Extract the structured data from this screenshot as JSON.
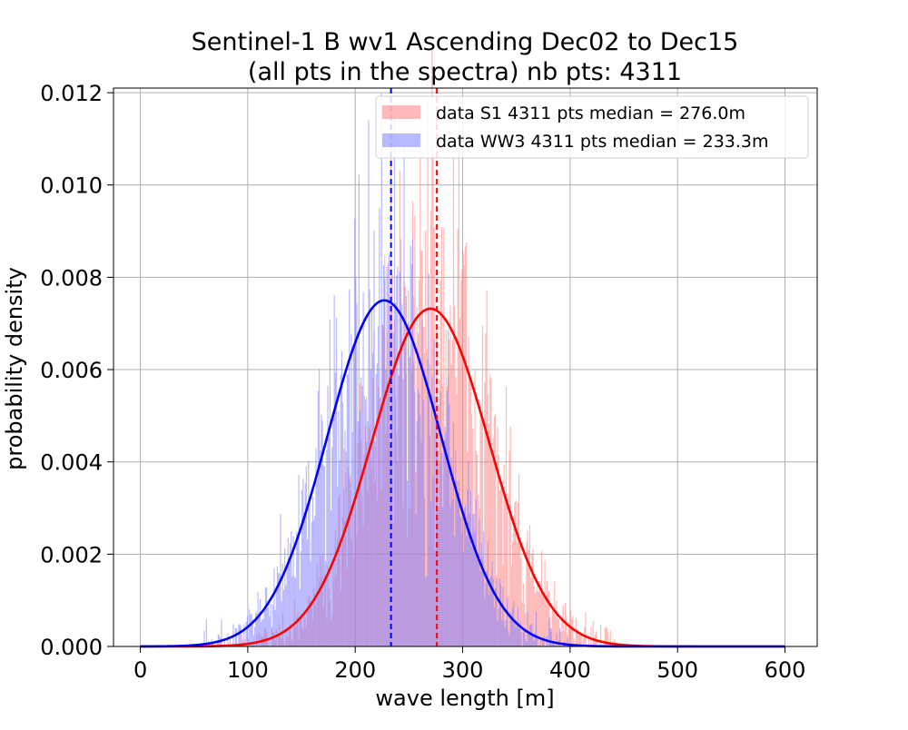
{
  "chart_data": {
    "type": "bar",
    "title": "Sentinel-1 B wv1 Ascending Dec02 to Dec15",
    "subtitle": "(all pts in the spectra) nb pts: 4311",
    "xlabel": "wave length [m]",
    "ylabel": "probability density",
    "xlim": [
      -25,
      630
    ],
    "ylim": [
      0,
      0.0121
    ],
    "xticks": [
      0,
      100,
      200,
      300,
      400,
      500,
      600
    ],
    "yticks": [
      0.0,
      0.002,
      0.004,
      0.006,
      0.008,
      0.01,
      0.012
    ],
    "xtick_labels": [
      "0",
      "100",
      "200",
      "300",
      "400",
      "500",
      "600"
    ],
    "ytick_labels": [
      "0.000",
      "0.002",
      "0.004",
      "0.006",
      "0.008",
      "0.010",
      "0.012"
    ],
    "grid": true,
    "legend_position": "top-right",
    "series": [
      {
        "name": "data S1 4311 pts median = 276.0m",
        "kind": "histogram",
        "color": "#ff7f7f",
        "opacity": 0.55,
        "fit_mean": 270,
        "fit_std": 54.5,
        "fit_peak": 0.00732,
        "fit_color": "#ff0000",
        "median": 276.0,
        "median_line_color": "#ff0000"
      },
      {
        "name": "data WW3 4311 pts median = 233.3m",
        "kind": "histogram",
        "color": "#7f7fff",
        "opacity": 0.55,
        "fit_mean": 227,
        "fit_std": 53,
        "fit_peak": 0.0075,
        "fit_color": "#0000ff",
        "median": 233.3,
        "median_line_color": "#0000ff"
      }
    ]
  }
}
